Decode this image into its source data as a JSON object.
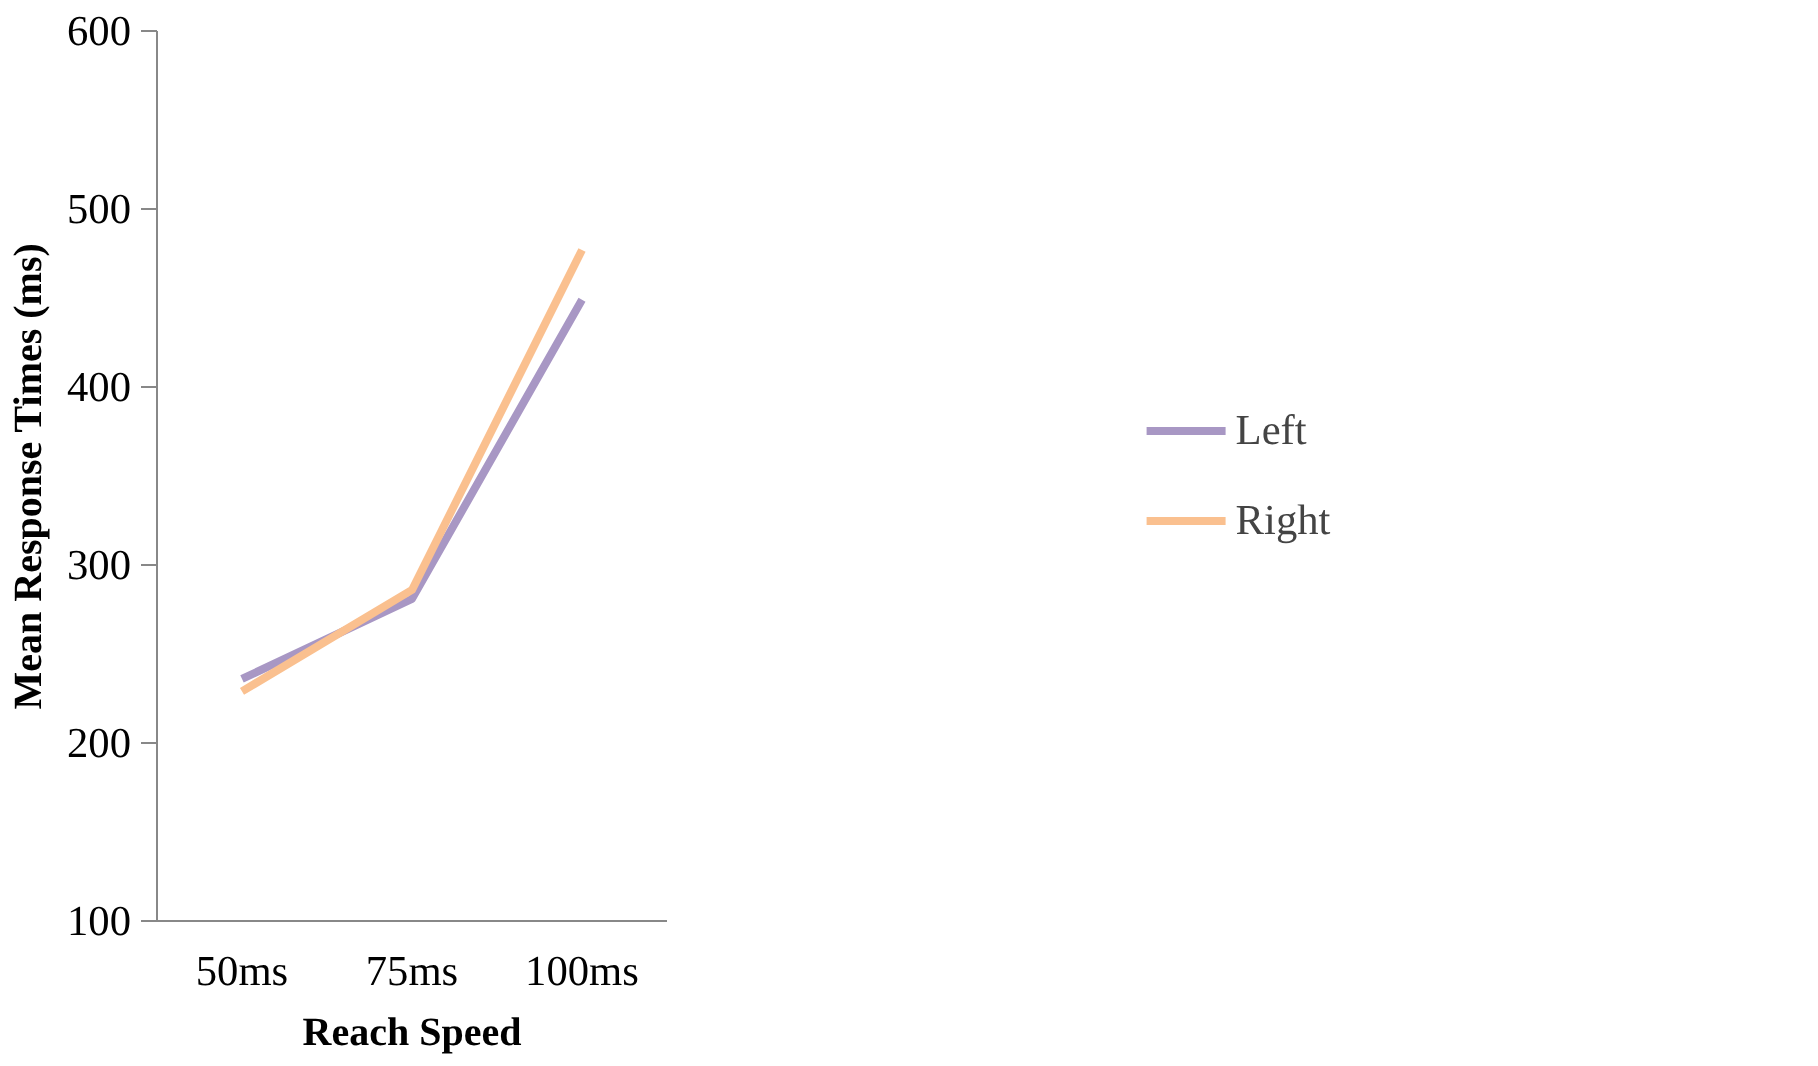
{
  "chart_data": {
    "type": "line",
    "xlabel": "Reach Speed",
    "ylabel": "Mean Response Times (ms)",
    "categories": [
      "50ms",
      "75ms",
      "100ms"
    ],
    "series": [
      {
        "name": "Left",
        "color": "#a897c4",
        "values": [
          236,
          281,
          449
        ]
      },
      {
        "name": "Right",
        "color": "#fac08f",
        "values": [
          229,
          286,
          477
        ]
      }
    ],
    "ylim": [
      100,
      600
    ],
    "yticks": [
      100,
      200,
      300,
      400,
      500,
      600
    ],
    "grid": false,
    "legend": "right",
    "marker": "none",
    "line_style": "solid"
  }
}
